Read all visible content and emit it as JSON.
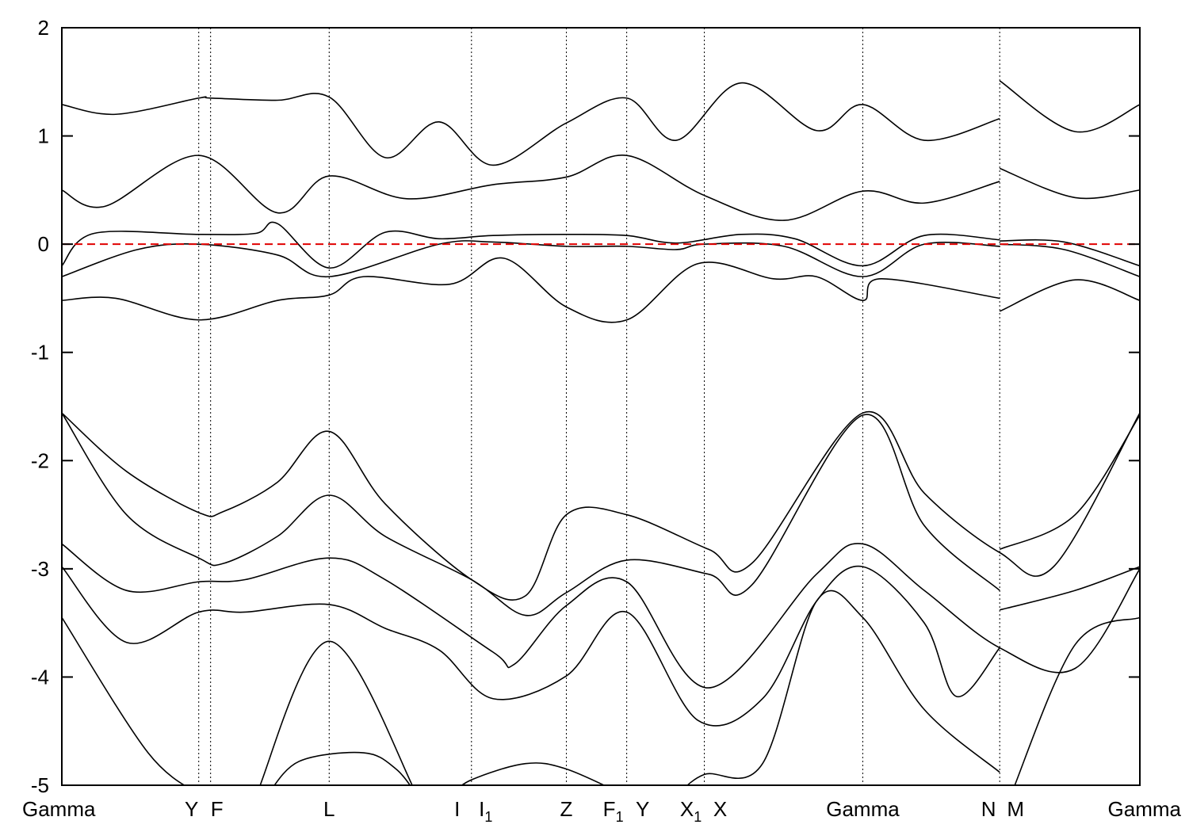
{
  "chart_data": {
    "type": "line",
    "title": "",
    "xlabel": "",
    "ylabel": "",
    "ylim": [
      -5,
      2
    ],
    "xlim": [
      0,
      1
    ],
    "y_ticks": [
      {
        "value": 2,
        "label": "2"
      },
      {
        "value": 1,
        "label": "1"
      },
      {
        "value": 0,
        "label": "0"
      },
      {
        "value": -1,
        "label": "-1"
      },
      {
        "value": -2,
        "label": "-2"
      },
      {
        "value": -3,
        "label": "-3"
      },
      {
        "value": -4,
        "label": "-4"
      },
      {
        "value": -5,
        "label": "-5"
      }
    ],
    "kpoints": [
      {
        "label": "Gamma",
        "sub": "",
        "x": 0.0,
        "line": false
      },
      {
        "label": "Y",
        "sub": "",
        "x": 0.127,
        "line": true
      },
      {
        "label": "F",
        "sub": "",
        "x": 0.138,
        "line": true
      },
      {
        "label": "L",
        "sub": "",
        "x": 0.248,
        "line": true
      },
      {
        "label": "I",
        "sub": "",
        "x": 0.38,
        "line": true
      },
      {
        "label": "I",
        "sub": "1",
        "x": 0.38,
        "line": false
      },
      {
        "label": "Z",
        "sub": "",
        "x": 0.468,
        "line": true
      },
      {
        "label": "F",
        "sub": "1",
        "x": 0.524,
        "line": true
      },
      {
        "label": "Y",
        "sub": "",
        "x": 0.524,
        "line": false
      },
      {
        "label": "X",
        "sub": "1",
        "x": 0.596,
        "line": true
      },
      {
        "label": "X",
        "sub": "",
        "x": 0.596,
        "line": false
      },
      {
        "label": "Gamma",
        "sub": "",
        "x": 0.743,
        "line": true
      },
      {
        "label": "N",
        "sub": "",
        "x": 0.87,
        "line": true
      },
      {
        "label": "M",
        "sub": "",
        "x": 0.87,
        "line": false
      },
      {
        "label": "Gamma",
        "sub": "",
        "x": 1.0,
        "line": false
      }
    ],
    "fermi_level": {
      "y": 0,
      "color": "#e00000"
    },
    "band_color": "#000000",
    "series": [
      {
        "points": [
          [
            0,
            1.29
          ],
          [
            0.05,
            1.2
          ],
          [
            0.127,
            1.35
          ],
          [
            0.138,
            1.35
          ],
          [
            0.2,
            1.33
          ],
          [
            0.248,
            1.36
          ],
          [
            0.3,
            0.8
          ],
          [
            0.35,
            1.13
          ],
          [
            0.4,
            0.73
          ],
          [
            0.468,
            1.12
          ],
          [
            0.524,
            1.35
          ],
          [
            0.57,
            0.96
          ],
          [
            0.63,
            1.49
          ],
          [
            0.7,
            1.05
          ],
          [
            0.743,
            1.29
          ],
          [
            0.8,
            0.96
          ],
          [
            0.87,
            1.16
          ]
        ]
      },
      {
        "points": [
          [
            0.87,
            1.51
          ],
          [
            0.94,
            1.04
          ],
          [
            1.0,
            1.29
          ]
        ]
      },
      {
        "points": [
          [
            0,
            0.5
          ],
          [
            0.04,
            0.35
          ],
          [
            0.127,
            0.82
          ],
          [
            0.2,
            0.29
          ],
          [
            0.248,
            0.63
          ],
          [
            0.32,
            0.42
          ],
          [
            0.4,
            0.55
          ],
          [
            0.468,
            0.62
          ],
          [
            0.524,
            0.82
          ],
          [
            0.596,
            0.45
          ],
          [
            0.67,
            0.22
          ],
          [
            0.743,
            0.49
          ],
          [
            0.8,
            0.38
          ],
          [
            0.87,
            0.58
          ]
        ]
      },
      {
        "points": [
          [
            0.87,
            0.7
          ],
          [
            0.94,
            0.43
          ],
          [
            1.0,
            0.5
          ]
        ]
      },
      {
        "points": [
          [
            0,
            -0.2
          ],
          [
            0.03,
            0.1
          ],
          [
            0.127,
            0.09
          ],
          [
            0.18,
            0.1
          ],
          [
            0.2,
            0.19
          ],
          [
            0.248,
            -0.22
          ],
          [
            0.3,
            0.11
          ],
          [
            0.35,
            0.05
          ],
          [
            0.4,
            0.08
          ],
          [
            0.468,
            0.09
          ],
          [
            0.524,
            0.08
          ],
          [
            0.57,
            0.01
          ],
          [
            0.63,
            0.09
          ],
          [
            0.68,
            0.05
          ],
          [
            0.743,
            -0.2
          ],
          [
            0.8,
            0.08
          ],
          [
            0.87,
            0.04
          ]
        ]
      },
      {
        "points": [
          [
            0.87,
            0.03
          ],
          [
            0.93,
            0.02
          ],
          [
            1.0,
            -0.2
          ]
        ]
      },
      {
        "points": [
          [
            0,
            -0.3
          ],
          [
            0.07,
            -0.05
          ],
          [
            0.127,
            0.0
          ],
          [
            0.2,
            -0.1
          ],
          [
            0.248,
            -0.3
          ],
          [
            0.35,
            0.0
          ],
          [
            0.4,
            0.02
          ],
          [
            0.468,
            -0.02
          ],
          [
            0.524,
            -0.02
          ],
          [
            0.57,
            -0.05
          ],
          [
            0.596,
            0.0
          ],
          [
            0.67,
            -0.02
          ],
          [
            0.743,
            -0.3
          ],
          [
            0.8,
            0.0
          ],
          [
            0.87,
            -0.02
          ]
        ]
      },
      {
        "points": [
          [
            0.87,
            0.0
          ],
          [
            0.93,
            -0.05
          ],
          [
            1.0,
            -0.3
          ]
        ]
      },
      {
        "points": [
          [
            0,
            -0.52
          ],
          [
            0.05,
            -0.5
          ],
          [
            0.127,
            -0.7
          ],
          [
            0.2,
            -0.52
          ],
          [
            0.248,
            -0.47
          ],
          [
            0.28,
            -0.3
          ],
          [
            0.36,
            -0.37
          ],
          [
            0.41,
            -0.13
          ],
          [
            0.468,
            -0.58
          ],
          [
            0.524,
            -0.7
          ],
          [
            0.59,
            -0.18
          ],
          [
            0.66,
            -0.32
          ],
          [
            0.7,
            -0.3
          ],
          [
            0.743,
            -0.52
          ],
          [
            0.76,
            -0.32
          ],
          [
            0.87,
            -0.5
          ]
        ]
      },
      {
        "points": [
          [
            0.87,
            -0.62
          ],
          [
            0.94,
            -0.33
          ],
          [
            1.0,
            -0.52
          ]
        ]
      },
      {
        "points": [
          [
            0,
            -1.56
          ],
          [
            0.06,
            -2.1
          ],
          [
            0.127,
            -2.48
          ],
          [
            0.15,
            -2.47
          ],
          [
            0.2,
            -2.2
          ],
          [
            0.248,
            -1.73
          ],
          [
            0.3,
            -2.4
          ],
          [
            0.38,
            -3.1
          ],
          [
            0.43,
            -3.25
          ],
          [
            0.468,
            -2.5
          ],
          [
            0.524,
            -2.5
          ],
          [
            0.6,
            -2.82
          ],
          [
            0.64,
            -2.95
          ],
          [
            0.743,
            -1.56
          ],
          [
            0.8,
            -2.3
          ],
          [
            0.87,
            -2.85
          ],
          [
            0.92,
            -2.98
          ],
          [
            1.0,
            -1.56
          ]
        ]
      },
      {
        "points": [
          [
            0,
            -1.56
          ],
          [
            0.06,
            -2.5
          ],
          [
            0.127,
            -2.9
          ],
          [
            0.15,
            -2.95
          ],
          [
            0.2,
            -2.7
          ],
          [
            0.248,
            -2.32
          ],
          [
            0.3,
            -2.7
          ],
          [
            0.38,
            -3.1
          ],
          [
            0.43,
            -3.43
          ],
          [
            0.468,
            -3.22
          ],
          [
            0.524,
            -2.92
          ],
          [
            0.6,
            -3.05
          ],
          [
            0.64,
            -3.15
          ],
          [
            0.743,
            -1.58
          ],
          [
            0.8,
            -2.6
          ],
          [
            0.87,
            -3.2
          ]
        ]
      },
      {
        "points": [
          [
            0.87,
            -2.82
          ],
          [
            0.94,
            -2.5
          ],
          [
            1.0,
            -1.58
          ]
        ]
      },
      {
        "points": [
          [
            0,
            -2.77
          ],
          [
            0.06,
            -3.2
          ],
          [
            0.127,
            -3.12
          ],
          [
            0.17,
            -3.1
          ],
          [
            0.248,
            -2.9
          ],
          [
            0.3,
            -3.1
          ],
          [
            0.4,
            -3.77
          ],
          [
            0.42,
            -3.88
          ],
          [
            0.468,
            -3.34
          ],
          [
            0.524,
            -3.12
          ],
          [
            0.6,
            -4.1
          ],
          [
            0.7,
            -3.05
          ],
          [
            0.743,
            -2.77
          ],
          [
            0.8,
            -3.2
          ],
          [
            0.87,
            -3.73
          ],
          [
            0.94,
            -3.92
          ],
          [
            1.0,
            -3.0
          ]
        ]
      },
      {
        "points": [
          [
            0,
            -2.98
          ],
          [
            0.06,
            -3.68
          ],
          [
            0.127,
            -3.4
          ],
          [
            0.17,
            -3.4
          ],
          [
            0.248,
            -3.33
          ],
          [
            0.3,
            -3.55
          ],
          [
            0.35,
            -3.75
          ],
          [
            0.4,
            -4.2
          ],
          [
            0.468,
            -3.99
          ],
          [
            0.524,
            -3.4
          ],
          [
            0.59,
            -4.4
          ],
          [
            0.65,
            -4.2
          ],
          [
            0.7,
            -3.3
          ],
          [
            0.743,
            -2.98
          ],
          [
            0.8,
            -3.5
          ],
          [
            0.83,
            -4.18
          ],
          [
            0.87,
            -3.73
          ]
        ]
      },
      {
        "points": [
          [
            0.87,
            -3.38
          ],
          [
            0.94,
            -3.2
          ],
          [
            1.0,
            -2.98
          ]
        ]
      },
      {
        "points": [
          [
            0,
            -3.45
          ],
          [
            0.08,
            -4.7
          ],
          [
            0.13,
            -5.1
          ]
        ]
      },
      {
        "points": [
          [
            0.18,
            -5.1
          ],
          [
            0.248,
            -3.67
          ],
          [
            0.33,
            -5.1
          ]
        ]
      },
      {
        "points": [
          [
            0.19,
            -5.1
          ],
          [
            0.22,
            -4.78
          ],
          [
            0.28,
            -4.7
          ],
          [
            0.31,
            -4.85
          ],
          [
            0.33,
            -5.1
          ]
        ]
      },
      {
        "points": [
          [
            0.36,
            -5.1
          ],
          [
            0.38,
            -4.95
          ],
          [
            0.43,
            -4.8
          ],
          [
            0.468,
            -4.85
          ],
          [
            0.524,
            -5.1
          ]
        ]
      },
      {
        "points": [
          [
            0.57,
            -5.1
          ],
          [
            0.596,
            -4.9
          ],
          [
            0.65,
            -4.8
          ],
          [
            0.7,
            -3.3
          ],
          [
            0.743,
            -3.45
          ],
          [
            0.8,
            -4.3
          ],
          [
            0.87,
            -4.88
          ]
        ]
      },
      {
        "points": [
          [
            0.88,
            -5.1
          ],
          [
            0.94,
            -3.7
          ],
          [
            1.0,
            -3.45
          ]
        ]
      }
    ]
  }
}
